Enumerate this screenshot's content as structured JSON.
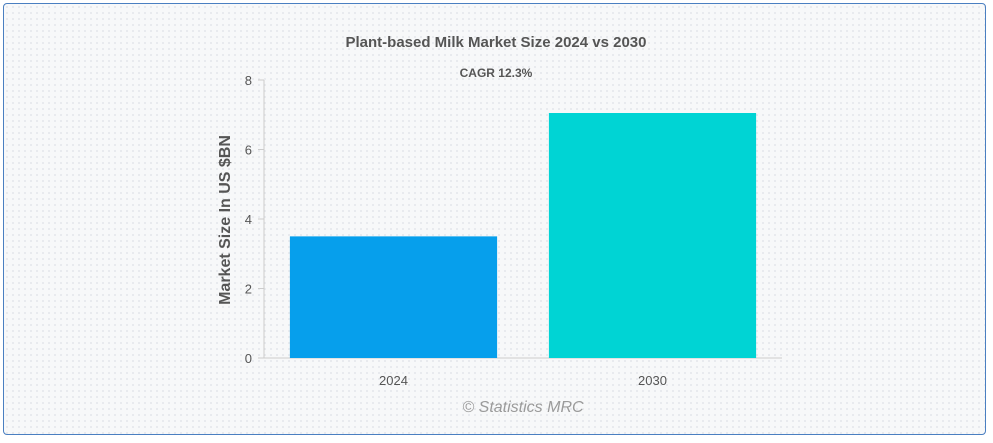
{
  "chart_data": {
    "type": "bar",
    "title": "Plant-based Milk Market Size 2024 vs 2030",
    "subtitle": "CAGR 12.3%",
    "ylabel": "Market Size In US $BN",
    "xlabel": "",
    "categories": [
      "2024",
      "2030"
    ],
    "values": [
      3.5,
      7.05
    ],
    "colors": [
      "#069fec",
      "#00d4d4"
    ],
    "ylim": [
      0,
      8
    ],
    "yticks": [
      "0",
      "2",
      "4",
      "6",
      "8"
    ],
    "grid": false,
    "legend": "none"
  },
  "watermark": "© Statistics MRC"
}
